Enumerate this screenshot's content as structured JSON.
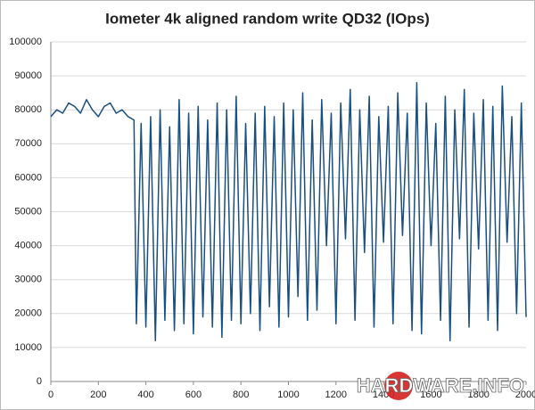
{
  "chart_data": {
    "type": "line",
    "title": "Iometer 4k aligned random write QD32 (IOps)",
    "watermark": "HARDWARE.INFO",
    "x": [
      0,
      25,
      50,
      75,
      100,
      125,
      150,
      175,
      200,
      225,
      250,
      275,
      300,
      325,
      350,
      360,
      380,
      400,
      420,
      440,
      460,
      480,
      500,
      520,
      540,
      560,
      580,
      600,
      620,
      640,
      660,
      680,
      700,
      720,
      740,
      760,
      780,
      800,
      820,
      840,
      860,
      880,
      900,
      920,
      940,
      960,
      980,
      1000,
      1020,
      1040,
      1060,
      1080,
      1100,
      1120,
      1140,
      1160,
      1180,
      1200,
      1220,
      1240,
      1260,
      1280,
      1300,
      1320,
      1340,
      1360,
      1380,
      1400,
      1420,
      1440,
      1460,
      1480,
      1500,
      1520,
      1540,
      1560,
      1580,
      1600,
      1620,
      1640,
      1660,
      1680,
      1700,
      1720,
      1740,
      1760,
      1780,
      1800,
      1820,
      1840,
      1860,
      1880,
      1900,
      1920,
      1940,
      1960,
      1980,
      2000
    ],
    "series": [
      {
        "name": "IOps",
        "color": "#1b4f7e",
        "values": [
          78000,
          80000,
          79000,
          82000,
          81000,
          79000,
          83000,
          80000,
          78000,
          81000,
          82000,
          79000,
          80000,
          78000,
          77000,
          17000,
          76000,
          16000,
          78000,
          12000,
          80000,
          18000,
          75000,
          15000,
          83000,
          17000,
          79000,
          14000,
          81000,
          19000,
          77000,
          16000,
          82000,
          13000,
          80000,
          18000,
          84000,
          17000,
          76000,
          20000,
          79000,
          15000,
          81000,
          22000,
          78000,
          16000,
          82000,
          19000,
          80000,
          25000,
          85000,
          18000,
          77000,
          21000,
          83000,
          40000,
          79000,
          17000,
          82000,
          42000,
          86000,
          18000,
          80000,
          38000,
          84000,
          16000,
          78000,
          41000,
          81000,
          17000,
          85000,
          43000,
          79000,
          15000,
          88000,
          14000,
          82000,
          40000,
          76000,
          18000,
          84000,
          12000,
          80000,
          42000,
          86000,
          16000,
          79000,
          39000,
          83000,
          18000,
          81000,
          15000,
          87000,
          41000,
          78000,
          20000,
          82000,
          19000
        ]
      }
    ],
    "xlim": [
      0,
      2000
    ],
    "xticks": [
      0,
      200,
      400,
      600,
      800,
      1000,
      1200,
      1400,
      1600,
      1800,
      2000
    ],
    "ylim": [
      0,
      100000
    ],
    "yticks": [
      0,
      10000,
      20000,
      30000,
      40000,
      50000,
      60000,
      70000,
      80000,
      90000,
      100000
    ],
    "grid": true
  }
}
